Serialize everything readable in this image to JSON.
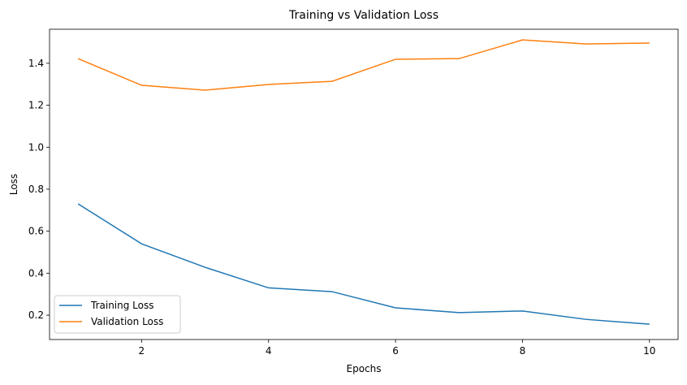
{
  "chart_data": {
    "type": "line",
    "title": "Training vs Validation Loss",
    "xlabel": "Epochs",
    "ylabel": "Loss",
    "x": [
      1,
      2,
      3,
      4,
      5,
      6,
      7,
      8,
      9,
      10
    ],
    "xlim": [
      0.55,
      10.45
    ],
    "ylim": [
      0.084,
      1.562
    ],
    "xticks": [
      2,
      4,
      6,
      8,
      10
    ],
    "yticks": [
      0.2,
      0.4,
      0.6,
      0.8,
      1.0,
      1.2,
      1.4
    ],
    "ytick_labels": [
      "0.2",
      "0.4",
      "0.6",
      "0.8",
      "1.0",
      "1.2",
      "1.4"
    ],
    "grid": false,
    "legend_position": "lower-left",
    "series": [
      {
        "name": "Training Loss",
        "color": "#1f77b4",
        "values": [
          0.73,
          0.54,
          0.428,
          0.33,
          0.312,
          0.235,
          0.212,
          0.22,
          0.18,
          0.157
        ]
      },
      {
        "name": "Validation Loss",
        "color": "#ff7f0e",
        "values": [
          1.422,
          1.295,
          1.272,
          1.299,
          1.314,
          1.419,
          1.422,
          1.511,
          1.492,
          1.496
        ]
      }
    ]
  }
}
